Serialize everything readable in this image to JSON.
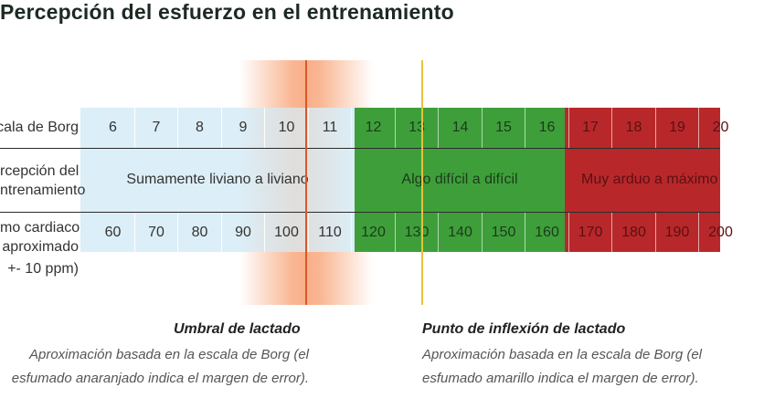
{
  "title": "Percepción del esfuerzo en el entrenamiento",
  "rows": {
    "borg_label": "cala de Borg",
    "perception_label": [
      "rcepción del",
      "ntrenamiento"
    ],
    "hr_label": [
      "mo cardiaco",
      "aproximado",
      "+- 10 ppm)"
    ]
  },
  "borg": [
    "6",
    "7",
    "8",
    "9",
    "10",
    "11",
    "12",
    "13",
    "14",
    "15",
    "16",
    "17",
    "18",
    "19",
    "20"
  ],
  "heart_rate": [
    "60",
    "70",
    "80",
    "90",
    "100",
    "110",
    "120",
    "130",
    "140",
    "150",
    "160",
    "170",
    "180",
    "190",
    "200"
  ],
  "zones": [
    {
      "label": "Sumamente liviano a liviano",
      "color": "#dceef7"
    },
    {
      "label": "Algo difícil a difícil",
      "color": "#3e9f3a"
    },
    {
      "label": "Muy arduo a máximo",
      "color": "#b8282b"
    }
  ],
  "notes": {
    "lactate": {
      "title": "Umbral de lactado",
      "lines": [
        "Aproximación basada en la escala de Borg (el",
        "esfumado anaranjado indica el margen de error)."
      ]
    },
    "inflection": {
      "title": "Punto de inflexión de lactado",
      "lines": [
        "Aproximación basada en la escala de Borg (el",
        "esfumado amarillo indica el margen de error)."
      ]
    }
  },
  "colors": {
    "orange_glow": "#f47a3a",
    "orange_line": "#d9582a",
    "yellow_line": "#e8c23a"
  }
}
